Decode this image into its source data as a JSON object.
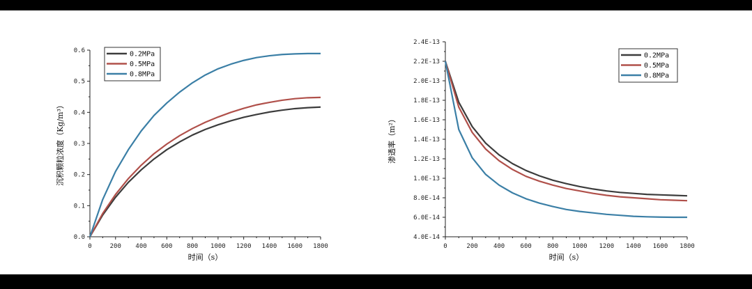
{
  "colors": {
    "background": "#000000",
    "panel": "#ffffff",
    "s1": "#3c3c3c",
    "s2": "#b0504a",
    "s3": "#3b7fa6"
  },
  "chart_data": [
    {
      "type": "line",
      "title": "",
      "xlabel": "时间（s）",
      "ylabel": "沉积颗粒浓度（Kg/m³）",
      "xlim": [
        0,
        1800
      ],
      "ylim": [
        0.0,
        0.6
      ],
      "xticks": [
        0,
        200,
        400,
        600,
        800,
        1000,
        1200,
        1400,
        1600,
        1800
      ],
      "xtick_labels": [
        "0",
        "200",
        "400",
        "600",
        "800",
        "1000",
        "1200",
        "1400",
        "1600",
        "1800"
      ],
      "yticks": [
        0.0,
        0.1,
        0.2,
        0.3,
        0.4,
        0.5,
        0.6
      ],
      "ytick_labels": [
        "0.0",
        "0.1",
        "0.2",
        "0.3",
        "0.4",
        "0.5",
        "0.6"
      ],
      "grid": false,
      "legend": "top-left",
      "x": [
        0,
        100,
        200,
        300,
        400,
        500,
        600,
        700,
        800,
        900,
        1000,
        1100,
        1200,
        1300,
        1400,
        1500,
        1600,
        1700,
        1800
      ],
      "series": [
        {
          "name": "0.2MPa",
          "color": "#3c3c3c",
          "values": [
            0.0,
            0.07,
            0.127,
            0.175,
            0.215,
            0.25,
            0.28,
            0.305,
            0.327,
            0.345,
            0.36,
            0.373,
            0.384,
            0.393,
            0.401,
            0.407,
            0.412,
            0.415,
            0.417
          ]
        },
        {
          "name": "0.5MPa",
          "color": "#b0504a",
          "values": [
            0.0,
            0.075,
            0.136,
            0.187,
            0.23,
            0.267,
            0.298,
            0.325,
            0.348,
            0.368,
            0.385,
            0.4,
            0.413,
            0.424,
            0.432,
            0.439,
            0.444,
            0.447,
            0.448
          ]
        },
        {
          "name": "0.8MPa",
          "color": "#3b7fa6",
          "values": [
            0.0,
            0.12,
            0.21,
            0.28,
            0.34,
            0.39,
            0.43,
            0.465,
            0.495,
            0.52,
            0.54,
            0.555,
            0.567,
            0.576,
            0.582,
            0.586,
            0.588,
            0.589,
            0.589
          ]
        }
      ]
    },
    {
      "type": "line",
      "title": "",
      "xlabel": "时间（s）",
      "ylabel": "渗透率（m²）",
      "xlim": [
        0,
        1800
      ],
      "ylim": [
        4e-14,
        2.4e-13
      ],
      "xticks": [
        0,
        200,
        400,
        600,
        800,
        1000,
        1200,
        1400,
        1600,
        1800
      ],
      "xtick_labels": [
        "0",
        "200",
        "400",
        "600",
        "800",
        "1000",
        "1200",
        "1400",
        "1600",
        "1800"
      ],
      "yticks": [
        4e-14,
        6e-14,
        8e-14,
        1e-13,
        1.2e-13,
        1.4e-13,
        1.6e-13,
        1.8e-13,
        2e-13,
        2.2e-13,
        2.4e-13
      ],
      "ytick_labels": [
        "4.0E-14",
        "6.0E-14",
        "8.0E-14",
        "1.0E-13",
        "1.2E-13",
        "1.4E-13",
        "1.6E-13",
        "1.8E-13",
        "2.0E-13",
        "2.2E-13",
        "2.4E-13"
      ],
      "grid": false,
      "legend": "top-right",
      "x": [
        0,
        100,
        200,
        300,
        400,
        500,
        600,
        700,
        800,
        900,
        1000,
        1100,
        1200,
        1300,
        1400,
        1500,
        1600,
        1700,
        1800
      ],
      "series": [
        {
          "name": "0.2MPa",
          "color": "#3c3c3c",
          "values": [
            2.2e-13,
            1.78e-13,
            1.53e-13,
            1.36e-13,
            1.24e-13,
            1.15e-13,
            1.08e-13,
            1.025e-13,
            9.8e-14,
            9.45e-14,
            9.15e-14,
            8.9e-14,
            8.7e-14,
            8.55e-14,
            8.45e-14,
            8.35e-14,
            8.3e-14,
            8.25e-14,
            8.2e-14
          ]
        },
        {
          "name": "0.5MPa",
          "color": "#b0504a",
          "values": [
            2.2e-13,
            1.73e-13,
            1.47e-13,
            1.3e-13,
            1.18e-13,
            1.09e-13,
            1.02e-13,
            9.7e-14,
            9.3e-14,
            8.95e-14,
            8.7e-14,
            8.45e-14,
            8.25e-14,
            8.1e-14,
            8e-14,
            7.9e-14,
            7.8e-14,
            7.75e-14,
            7.7e-14
          ]
        },
        {
          "name": "0.8MPa",
          "color": "#3b7fa6",
          "values": [
            2.2e-13,
            1.5e-13,
            1.21e-13,
            1.04e-13,
            9.3e-14,
            8.5e-14,
            7.9e-14,
            7.45e-14,
            7.1e-14,
            6.8e-14,
            6.6e-14,
            6.45e-14,
            6.3e-14,
            6.2e-14,
            6.1e-14,
            6.05e-14,
            6.02e-14,
            6e-14,
            6e-14
          ]
        }
      ]
    }
  ]
}
